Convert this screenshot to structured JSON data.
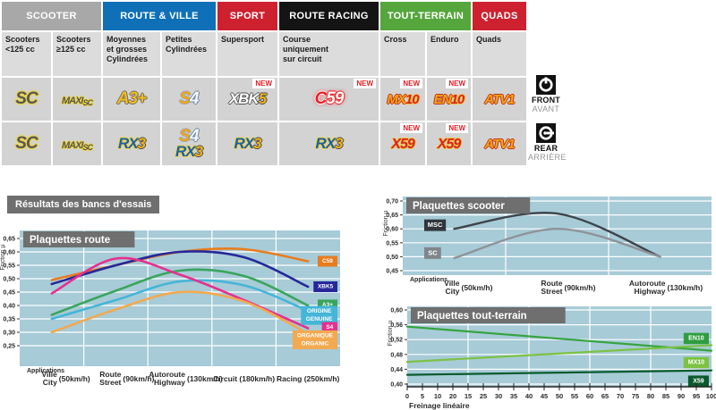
{
  "colors": {
    "chart_bg": "#a7cbd7",
    "grid": "#ffffff",
    "banner_gray": "#6f6f6f",
    "subheader_bg": "#dcdcdc",
    "cell_bg": "#d3d3d3",
    "new_red": "#e31e24",
    "scooter_header": "#a8a8a8",
    "route_ville_header": "#0f70b7",
    "sport_header": "#cd2130",
    "route_racing_header": "#141414",
    "tout_terrain_header": "#55a63c",
    "quads_header": "#cd2130"
  },
  "table": {
    "groups": [
      {
        "label": "SCOOTER",
        "color": "#a8a8a8",
        "span": 2
      },
      {
        "label": "ROUTE & VILLE",
        "color": "#0f70b7",
        "span": 2
      },
      {
        "label": "SPORT",
        "color": "#cd2130",
        "span": 1
      },
      {
        "label": "ROUTE RACING",
        "color": "#141414",
        "span": 1
      },
      {
        "label": "TOUT-TERRAIN",
        "color": "#55a63c",
        "span": 2
      },
      {
        "label": "QUADS",
        "color": "#cd2130",
        "span": 1
      }
    ],
    "subheaders": [
      "Scooters\n<125 cc",
      "Scooters\n≥125 cc",
      "Moyennes\net grosses\nCylindrées",
      "Petites\nCylindrées",
      "Supersport",
      "Course\nuniquement\nsur circuit",
      "Cross",
      "Enduro",
      "Quads"
    ],
    "new_label": "NEW",
    "rows": [
      {
        "side": "front",
        "badge": {
          "label": "FRONT",
          "sublabel": "AVANT"
        },
        "cells": [
          {
            "parts": [
              {
                "t": "SC",
                "tone": "sc"
              }
            ]
          },
          {
            "parts": [
              {
                "t": "MAXI",
                "tone": "maxi"
              },
              {
                "t": "SC",
                "tone": "maxi2"
              }
            ]
          },
          {
            "parts": [
              {
                "t": "A3+",
                "tone": "gold"
              }
            ]
          },
          {
            "parts": [
              {
                "t": "S",
                "tone": "s"
              },
              {
                "t": "4",
                "tone": "four"
              }
            ]
          },
          {
            "parts": [
              {
                "t": "XBK",
                "tone": "white"
              },
              {
                "t": "5",
                "tone": "gold2"
              }
            ],
            "new": true
          },
          {
            "parts": [
              {
                "t": "C",
                "tone": "redglow"
              },
              {
                "t": "59",
                "tone": "whitered"
              }
            ],
            "new": true
          },
          {
            "parts": [
              {
                "t": "MX",
                "tone": "goldred"
              },
              {
                "t": "10",
                "tone": "red"
              }
            ],
            "new": true
          },
          {
            "parts": [
              {
                "t": "EN",
                "tone": "goldred"
              },
              {
                "t": "10",
                "tone": "red"
              }
            ],
            "new": true
          },
          {
            "parts": [
              {
                "t": "ATV",
                "tone": "goldred"
              },
              {
                "t": "1",
                "tone": "goldred"
              }
            ]
          }
        ]
      },
      {
        "side": "rear",
        "badge": {
          "label": "REAR",
          "sublabel": "ARRIÈRE"
        },
        "cells": [
          {
            "parts": [
              {
                "t": "SC",
                "tone": "sc"
              }
            ]
          },
          {
            "parts": [
              {
                "t": "MAXI",
                "tone": "maxi"
              },
              {
                "t": "SC",
                "tone": "maxi2"
              }
            ]
          },
          {
            "parts": [
              {
                "t": "RX",
                "tone": "blue"
              },
              {
                "t": "3",
                "tone": "gold2"
              }
            ]
          },
          {
            "parts": [
              {
                "t": "S",
                "tone": "s"
              },
              {
                "t": "4",
                "tone": "four"
              },
              {
                "t": "RX",
                "tone": "blue",
                "br": true
              },
              {
                "t": "3",
                "tone": "gold2"
              }
            ]
          },
          {
            "parts": [
              {
                "t": "RX",
                "tone": "blue"
              },
              {
                "t": "3",
                "tone": "gold2"
              }
            ]
          },
          {
            "parts": [
              {
                "t": "RX",
                "tone": "blue"
              },
              {
                "t": "3",
                "tone": "gold2"
              }
            ]
          },
          {
            "parts": [
              {
                "t": "X59",
                "tone": "redgold"
              }
            ],
            "new": true
          },
          {
            "parts": [
              {
                "t": "X59",
                "tone": "redgold"
              }
            ],
            "new": true
          },
          {
            "parts": [
              {
                "t": "ATV",
                "tone": "goldred"
              },
              {
                "t": "1",
                "tone": "goldred"
              }
            ]
          }
        ]
      }
    ]
  },
  "results_title": "Résultats des bancs d'essais",
  "chart_data": [
    {
      "type": "line",
      "title": "Plaquettes route",
      "ylabel": "Friction µ",
      "x_header": "Applications",
      "x_type": "category",
      "categories": [
        {
          "line1": "Ville",
          "line2": "City",
          "speed": "(50km/h)"
        },
        {
          "line1": "Route",
          "line2": "Street",
          "speed": "(90km/h)"
        },
        {
          "line1": "Autoroute",
          "line2": "Highway",
          "speed": "(130km/h)"
        },
        {
          "line1": "Circuit",
          "speed": "(180km/h)"
        },
        {
          "line1": "Racing",
          "speed": "(250km/h)"
        }
      ],
      "ylim": [
        0.25,
        0.65
      ],
      "ytick_step": 0.05,
      "grid": true,
      "legend_position": "right",
      "series": [
        {
          "name": "C59",
          "label_lines": [
            "C59"
          ],
          "color": "#e87c1e",
          "values": [
            0.495,
            0.55,
            0.6,
            0.61,
            0.565
          ],
          "label_value": 0.565
        },
        {
          "name": "XBK5",
          "label_lines": [
            "XBK5"
          ],
          "color": "#26289a",
          "values": [
            0.48,
            0.55,
            0.6,
            0.58,
            0.47
          ],
          "label_value": 0.47
        },
        {
          "name": "A3+",
          "label_lines": [
            "A3+"
          ],
          "color": "#3aa55c",
          "values": [
            0.365,
            0.455,
            0.53,
            0.51,
            0.4
          ],
          "label_value": 0.402
        },
        {
          "name": "ORIGINE GENUINE",
          "label_lines": [
            "ORIGINE",
            "GENUINE"
          ],
          "color": "#45b5d8",
          "values": [
            0.35,
            0.42,
            0.49,
            0.475,
            0.38
          ],
          "label_value": 0.363
        },
        {
          "name": "S4",
          "label_lines": [
            "S4"
          ],
          "color": "#e5308e",
          "values": [
            0.445,
            0.575,
            0.515,
            0.42,
            0.315
          ],
          "label_value": 0.318
        },
        {
          "name": "ORGANIQUE ORGANIC",
          "label_lines": [
            "ORGANIQUE",
            "ORGANIC"
          ],
          "color": "#f3a94f",
          "values": [
            0.3,
            0.385,
            0.45,
            0.415,
            0.295
          ],
          "label_value": 0.272
        }
      ]
    },
    {
      "type": "line",
      "title": "Plaquettes scooter",
      "ylabel": "Friction µ",
      "x_header": "Applications",
      "x_type": "category",
      "categories": [
        {
          "line1": "Ville",
          "line2": "City",
          "speed": "(50km/h)"
        },
        {
          "line1": "Route",
          "line2": "Street",
          "speed": "(90km/h)"
        },
        {
          "line1": "Autoroute",
          "line2": "Highway",
          "speed": "(130km/h)"
        }
      ],
      "ylim": [
        0.45,
        0.7
      ],
      "ytick_step": 0.05,
      "grid": true,
      "legend_position": "left",
      "series": [
        {
          "name": "MSC",
          "label_lines": [
            "MSC"
          ],
          "color": "#3d464b",
          "label_color": "#2f373c",
          "values": [
            0.6,
            0.655,
            0.5
          ],
          "label_value": 0.613
        },
        {
          "name": "SC",
          "label_lines": [
            "SC"
          ],
          "color": "#8d9499",
          "label_color": "#7f868b",
          "values": [
            0.495,
            0.6,
            0.5
          ],
          "label_value": 0.513
        }
      ]
    },
    {
      "type": "line",
      "title": "Plaquettes tout-terrain",
      "ylabel": "Friction µ",
      "xlabel": "Freinage linéaire",
      "x_type": "linear",
      "xlim": [
        0,
        100
      ],
      "x_ticks": [
        "0",
        "5",
        "10",
        "20",
        "15",
        "25",
        "30",
        "35",
        "40",
        "45",
        "50",
        "55",
        "60",
        "65",
        "70",
        "75",
        "80",
        "85",
        "90",
        "95",
        "100"
      ],
      "ylim": [
        0.4,
        0.6
      ],
      "ytick_step": 0.04,
      "grid": true,
      "legend_position": "right",
      "series": [
        {
          "name": "EN10",
          "label_lines": [
            "EN10"
          ],
          "color": "#35a43e",
          "label_color": "#2f9e3e",
          "values": [
            [
              0,
              0.555
            ],
            [
              100,
              0.49
            ]
          ],
          "label_value": 0.523
        },
        {
          "name": "MX10",
          "label_lines": [
            "MX10"
          ],
          "color": "#7cc243",
          "label_color": "#7cc243",
          "values": [
            [
              0,
              0.46
            ],
            [
              100,
              0.505
            ]
          ],
          "label_value": 0.458
        },
        {
          "name": "X59",
          "label_lines": [
            "X59"
          ],
          "color": "#0a5a2e",
          "label_color": "#0a5a2e",
          "values": [
            [
              0,
              0.425
            ],
            [
              100,
              0.437
            ]
          ],
          "label_value": 0.408
        }
      ]
    }
  ]
}
